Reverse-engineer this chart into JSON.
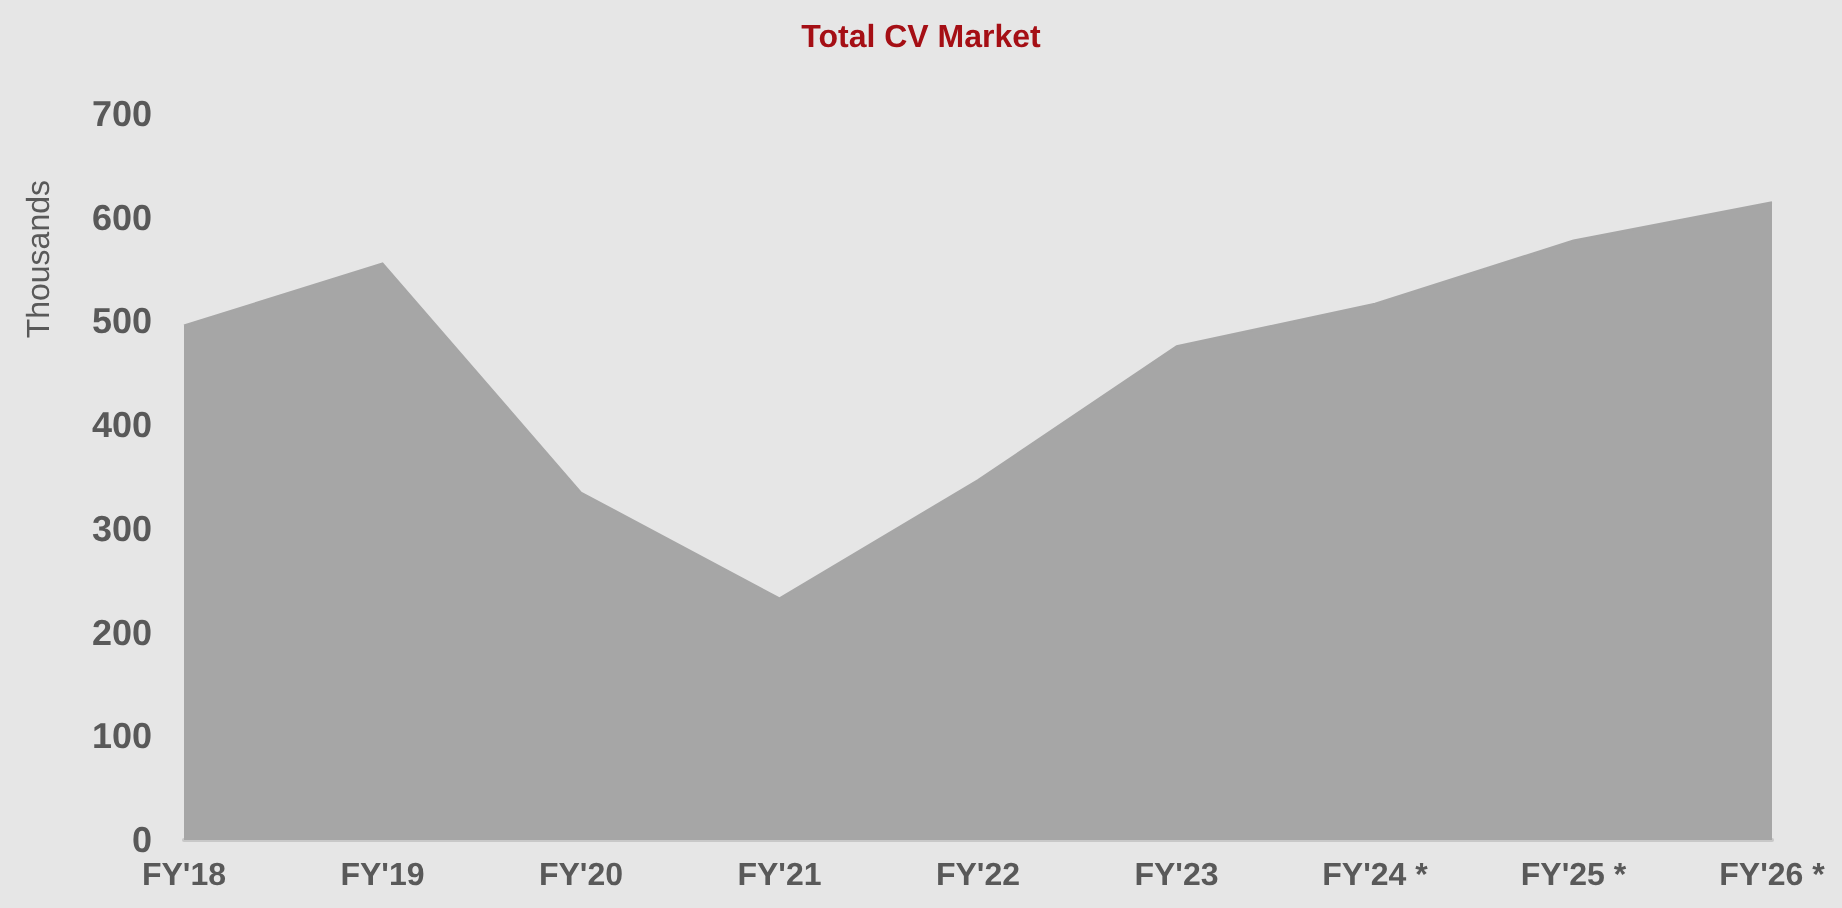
{
  "chart_data": {
    "type": "area",
    "title": "Total CV Market",
    "ylabel": "Thousands",
    "categories": [
      "FY'18",
      "FY'19",
      "FY'20",
      "FY'21",
      "FY'22",
      "FY'23",
      "FY'24 *",
      "FY'25 *",
      "FY'26 *"
    ],
    "series": [
      {
        "color": "#a6a6a6",
        "values": [
          496,
          556,
          335,
          233,
          347,
          476,
          517,
          578,
          615
        ]
      }
    ],
    "ylim": [
      0,
      700
    ],
    "yticks": [
      0,
      100,
      200,
      300,
      400,
      500,
      600,
      700
    ],
    "grid": false
  }
}
